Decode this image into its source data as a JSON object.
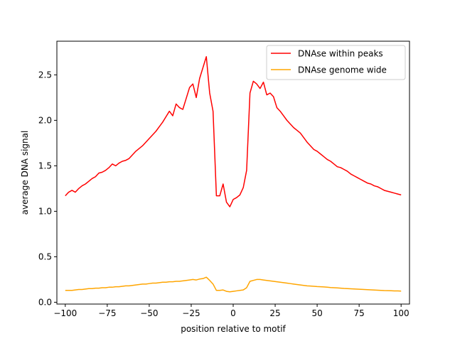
{
  "chart_data": {
    "type": "line",
    "title": "",
    "xlabel": "position relative to motif",
    "ylabel": "average DNA signal",
    "xlim": [
      -105,
      105
    ],
    "ylim": [
      -0.02,
      2.87
    ],
    "xticks": [
      -100,
      -75,
      -50,
      -25,
      0,
      25,
      50,
      75,
      100
    ],
    "xtick_labels": [
      "−100",
      "−75",
      "−50",
      "−25",
      "0",
      "25",
      "50",
      "75",
      "100"
    ],
    "yticks": [
      0.0,
      0.5,
      1.0,
      1.5,
      2.0,
      2.5
    ],
    "ytick_labels": [
      "0.0",
      "0.5",
      "1.0",
      "1.5",
      "2.0",
      "2.5"
    ],
    "grid": false,
    "legend_position": "top-right",
    "x": [
      -100,
      -98,
      -96,
      -94,
      -92,
      -90,
      -88,
      -86,
      -84,
      -82,
      -80,
      -78,
      -76,
      -74,
      -72,
      -70,
      -68,
      -66,
      -64,
      -62,
      -60,
      -58,
      -56,
      -54,
      -52,
      -50,
      -48,
      -46,
      -44,
      -42,
      -40,
      -38,
      -36,
      -34,
      -32,
      -30,
      -28,
      -26,
      -24,
      -22,
      -20,
      -18,
      -16,
      -14,
      -12,
      -10,
      -8,
      -6,
      -4,
      -2,
      0,
      2,
      4,
      6,
      8,
      10,
      12,
      14,
      16,
      18,
      20,
      22,
      24,
      26,
      28,
      30,
      32,
      34,
      36,
      38,
      40,
      42,
      44,
      46,
      48,
      50,
      52,
      54,
      56,
      58,
      60,
      62,
      64,
      66,
      68,
      70,
      72,
      74,
      76,
      78,
      80,
      82,
      84,
      86,
      88,
      90,
      92,
      94,
      96,
      98,
      100
    ],
    "series": [
      {
        "name": "DNAse within peaks",
        "color": "#ff0000",
        "values": [
          1.17,
          1.21,
          1.23,
          1.21,
          1.25,
          1.28,
          1.3,
          1.33,
          1.36,
          1.38,
          1.42,
          1.43,
          1.45,
          1.48,
          1.52,
          1.5,
          1.53,
          1.55,
          1.56,
          1.58,
          1.62,
          1.66,
          1.69,
          1.72,
          1.76,
          1.8,
          1.84,
          1.88,
          1.93,
          1.98,
          2.04,
          2.1,
          2.05,
          2.18,
          2.14,
          2.12,
          2.24,
          2.36,
          2.4,
          2.25,
          2.46,
          2.58,
          2.7,
          2.3,
          2.1,
          1.17,
          1.17,
          1.3,
          1.1,
          1.05,
          1.13,
          1.15,
          1.18,
          1.26,
          1.45,
          2.3,
          2.43,
          2.4,
          2.35,
          2.42,
          2.28,
          2.3,
          2.26,
          2.14,
          2.1,
          2.05,
          2.0,
          1.96,
          1.92,
          1.89,
          1.86,
          1.81,
          1.76,
          1.72,
          1.68,
          1.66,
          1.63,
          1.6,
          1.57,
          1.55,
          1.52,
          1.49,
          1.48,
          1.46,
          1.44,
          1.41,
          1.39,
          1.37,
          1.35,
          1.33,
          1.31,
          1.3,
          1.28,
          1.27,
          1.25,
          1.23,
          1.22,
          1.21,
          1.2,
          1.19,
          1.18
        ]
      },
      {
        "name": "DNAse genome wide",
        "color": "#ffa500",
        "values": [
          0.13,
          0.13,
          0.13,
          0.135,
          0.14,
          0.14,
          0.145,
          0.15,
          0.15,
          0.155,
          0.155,
          0.16,
          0.16,
          0.165,
          0.165,
          0.17,
          0.17,
          0.175,
          0.18,
          0.18,
          0.185,
          0.19,
          0.195,
          0.2,
          0.2,
          0.205,
          0.21,
          0.21,
          0.215,
          0.22,
          0.22,
          0.225,
          0.225,
          0.23,
          0.23,
          0.235,
          0.24,
          0.245,
          0.25,
          0.245,
          0.255,
          0.26,
          0.275,
          0.24,
          0.2,
          0.13,
          0.13,
          0.135,
          0.12,
          0.115,
          0.12,
          0.125,
          0.13,
          0.135,
          0.16,
          0.23,
          0.24,
          0.25,
          0.25,
          0.245,
          0.24,
          0.235,
          0.23,
          0.225,
          0.22,
          0.215,
          0.21,
          0.205,
          0.2,
          0.195,
          0.19,
          0.185,
          0.18,
          0.178,
          0.175,
          0.172,
          0.17,
          0.168,
          0.165,
          0.162,
          0.16,
          0.158,
          0.155,
          0.152,
          0.15,
          0.148,
          0.146,
          0.144,
          0.142,
          0.14,
          0.138,
          0.136,
          0.134,
          0.132,
          0.13,
          0.128,
          0.127,
          0.126,
          0.125,
          0.124,
          0.123
        ]
      }
    ]
  }
}
